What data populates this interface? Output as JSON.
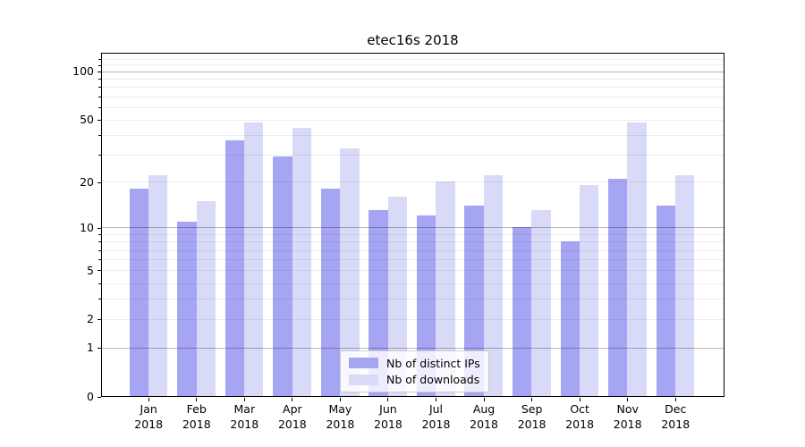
{
  "chart_data": {
    "type": "bar",
    "title": "etec16s 2018",
    "categories": [
      {
        "month": "Jan",
        "year": "2018"
      },
      {
        "month": "Feb",
        "year": "2018"
      },
      {
        "month": "Mar",
        "year": "2018"
      },
      {
        "month": "Apr",
        "year": "2018"
      },
      {
        "month": "May",
        "year": "2018"
      },
      {
        "month": "Jun",
        "year": "2018"
      },
      {
        "month": "Jul",
        "year": "2018"
      },
      {
        "month": "Aug",
        "year": "2018"
      },
      {
        "month": "Sep",
        "year": "2018"
      },
      {
        "month": "Oct",
        "year": "2018"
      },
      {
        "month": "Nov",
        "year": "2018"
      },
      {
        "month": "Dec",
        "year": "2018"
      }
    ],
    "series": [
      {
        "name": "Nb of distinct IPs",
        "color": "#a5a5f3",
        "values": [
          18,
          11,
          37,
          29,
          18,
          13,
          12,
          14,
          10,
          8,
          21,
          14
        ]
      },
      {
        "name": "Nb of downloads",
        "color": "#d9d9f8",
        "values": [
          22,
          15,
          48,
          44,
          33,
          16,
          20,
          22,
          13,
          19,
          48,
          22
        ]
      }
    ],
    "yscale": "log1p",
    "ylim": [
      0,
      130
    ],
    "y_tick_labels": [
      "100",
      "50",
      "20",
      "10",
      "5",
      "2",
      "1",
      "0"
    ],
    "y_tick_values": [
      100,
      50,
      20,
      10,
      5,
      2,
      1,
      0
    ],
    "y_major_grid_values": [
      1,
      10,
      100
    ],
    "y_minor_grid_values": [
      2,
      3,
      4,
      5,
      6,
      7,
      8,
      9,
      20,
      30,
      40,
      50,
      60,
      70,
      80,
      90,
      110,
      120
    ],
    "grid": true,
    "legend_position": "lower center"
  }
}
